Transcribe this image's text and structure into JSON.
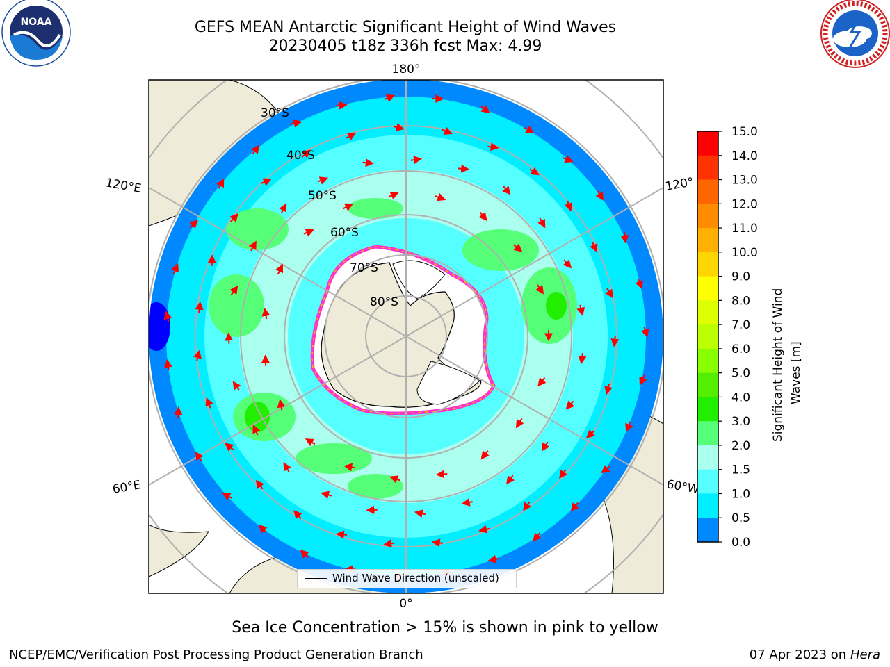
{
  "title": {
    "line1": "GEFS MEAN Antarctic Significant Height of Wind Waves",
    "line2": "20230405 t18z 336h fcst   Max: 4.99"
  },
  "map": {
    "projection": "south-polar-stereographic",
    "longitude_labels": {
      "top": "180°",
      "bottom": "0°",
      "upper_left": "120°E",
      "upper_right": "120°",
      "lower_left": "60°E",
      "lower_right": "60°W"
    },
    "latitude_labels": [
      "30°S",
      "40°S",
      "50°S",
      "60°S",
      "70°S",
      "80°S"
    ],
    "legend_label": "Wind Wave Direction (unscaled)",
    "colors": {
      "land": "#efebd9",
      "sea_ice": "#ffffff",
      "ice_edge": "#ff33cc",
      "arrow": "#ff0000",
      "grid": "#b0b0b0"
    }
  },
  "colorbar": {
    "label": "Significant Height of Wind Waves [m]",
    "label_line1": "Significant Height of Wind",
    "label_line2": "Waves [m]",
    "ticks": [
      "15.0",
      "14.0",
      "13.0",
      "12.0",
      "11.0",
      "10.0",
      "9.0",
      "8.0",
      "7.0",
      "6.0",
      "5.0",
      "4.0",
      "3.0",
      "2.0",
      "1.5",
      "1.0",
      "0.5",
      "0.0"
    ],
    "colors": [
      "#ff0000",
      "#ff3300",
      "#ff6600",
      "#ff8c00",
      "#ffb000",
      "#ffd500",
      "#ffff00",
      "#ddff00",
      "#bbff00",
      "#88ff00",
      "#55ee00",
      "#22ee00",
      "#55ff77",
      "#aaffee",
      "#55ffff",
      "#00eeff",
      "#0088ff",
      "#0000ff"
    ]
  },
  "caption": "Sea Ice Concentration > 15% is shown in pink to yellow",
  "footer": {
    "left": "NCEP/EMC/Verification Post Processing Product Generation Branch",
    "right_date": "07 Apr 2023 on ",
    "right_host": "Hera"
  },
  "logos": {
    "left": {
      "name": "noaa-logo",
      "text": "NOAA",
      "ring_text": "NATIONAL OCEANIC AND ATMOSPHERIC ADMINISTRATION"
    },
    "right": {
      "name": "nws-logo",
      "ring_text": "NATIONAL WEATHER SERVICE"
    }
  }
}
